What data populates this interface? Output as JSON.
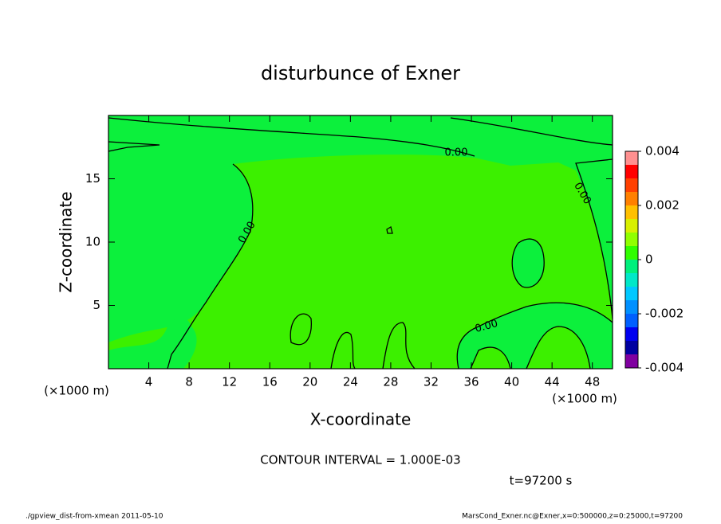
{
  "chart_data": {
    "type": "contour",
    "title": "disturbunce of Exner",
    "x_label": "X-coordinate",
    "y_label": "Z-coordinate",
    "x_unit": "(×1000 m)",
    "y_unit": "(×1000 m)",
    "xlim": [
      0,
      50
    ],
    "xticks": [
      4,
      8,
      12,
      16,
      20,
      24,
      28,
      32,
      36,
      40,
      44,
      48
    ],
    "ylim": [
      0,
      20
    ],
    "yticks": [
      5,
      10,
      15
    ],
    "colorbar": {
      "lim": [
        -0.004,
        0.004
      ],
      "ticks": [
        0.004,
        0.002,
        0,
        -0.002,
        -0.004
      ],
      "levels": [
        -0.004,
        -0.0035,
        -0.003,
        -0.0025,
        -0.002,
        -0.0015,
        -0.001,
        -0.0005,
        0,
        0.0005,
        0.001,
        0.0015,
        0.002,
        0.0025,
        0.003,
        0.0035,
        0.004
      ],
      "colors": [
        "#8000a0",
        "#0000a0",
        "#0000f0",
        "#0060ff",
        "#0090ff",
        "#00c8ff",
        "#00e8c8",
        "#00f07c",
        "#30ff00",
        "#90ff00",
        "#d8f000",
        "#ffc000",
        "#ff8000",
        "#ff4000",
        "#ff0000",
        "#ff9090"
      ]
    },
    "contour_labels": [
      "0.00",
      "0.00",
      "0.00",
      "0.00"
    ],
    "contour_interval": "CONTOUR INTERVAL = 1.000E-03",
    "time_label": "t=97200 s",
    "footer_left": "./gpview_dist-from-xmean  2011-05-10",
    "footer_right": "MarsCond_Exner.nc@Exner,x=0:500000,z=0:25000,t=97200"
  }
}
